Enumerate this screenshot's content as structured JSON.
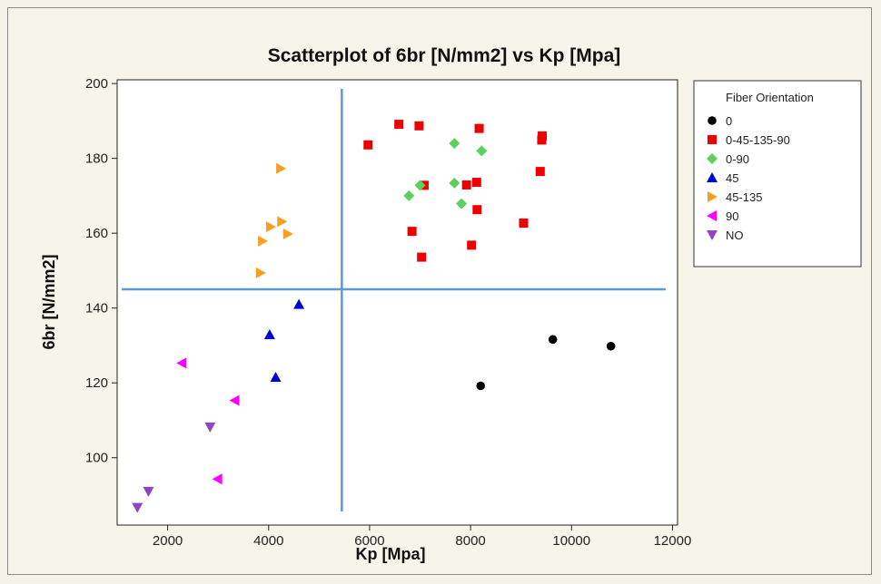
{
  "chart_data": {
    "type": "scatter",
    "title": "Scatterplot of 6br [N/mm2] vs Kp [Mpa]",
    "xlabel": "Kp [Mpa]",
    "ylabel": "6br [N/mm2]",
    "xlim": [
      1000,
      12100
    ],
    "ylim": [
      82,
      201
    ],
    "xticks": [
      2000,
      4000,
      6000,
      8000,
      10000,
      12000
    ],
    "yticks": [
      100,
      120,
      140,
      160,
      180,
      200
    ],
    "grid": false,
    "legend_placement": "right",
    "legend_title": "Fiber Orientation",
    "reference_lines": {
      "x": 5450,
      "y": 145
    },
    "reference_line_color": "#5b9bd5",
    "series": [
      {
        "name": "0",
        "marker": "circle",
        "color": "#000000",
        "points": [
          [
            8200,
            119.2
          ],
          [
            9630,
            131.6
          ],
          [
            10780,
            129.8
          ]
        ]
      },
      {
        "name": "0-45-135-90",
        "marker": "square",
        "color": "#ee0000",
        "points": [
          [
            5970,
            183.6
          ],
          [
            6580,
            189.1
          ],
          [
            6980,
            188.7
          ],
          [
            7080,
            172.8
          ],
          [
            6840,
            160.5
          ],
          [
            7030,
            153.6
          ],
          [
            7920,
            172.9
          ],
          [
            8120,
            173.6
          ],
          [
            8170,
            188.0
          ],
          [
            8130,
            166.3
          ],
          [
            8020,
            156.8
          ],
          [
            9050,
            162.7
          ],
          [
            9380,
            176.5
          ],
          [
            9410,
            184.9
          ],
          [
            9420,
            186.0
          ]
        ]
      },
      {
        "name": "0-90",
        "marker": "diamond",
        "color": "#5ccf5c",
        "points": [
          [
            6780,
            170.0
          ],
          [
            7000,
            172.8
          ],
          [
            7680,
            173.4
          ],
          [
            7680,
            184.0
          ],
          [
            7820,
            167.9
          ],
          [
            8220,
            182.0
          ]
        ]
      },
      {
        "name": "45",
        "marker": "triangle-up",
        "color": "#0000dd",
        "points": [
          [
            4020,
            132.9
          ],
          [
            4140,
            121.5
          ],
          [
            4600,
            141.0
          ]
        ]
      },
      {
        "name": "45-135",
        "marker": "triangle-right",
        "color": "#f5a020",
        "points": [
          [
            3840,
            149.4
          ],
          [
            3880,
            157.9
          ],
          [
            4040,
            161.7
          ],
          [
            4240,
            177.3
          ],
          [
            4260,
            163.1
          ],
          [
            4380,
            159.8
          ]
        ]
      },
      {
        "name": "90",
        "marker": "triangle-left",
        "color": "#ff00ff",
        "points": [
          [
            2280,
            125.3
          ],
          [
            2990,
            94.3
          ],
          [
            3330,
            115.3
          ]
        ]
      },
      {
        "name": "NO",
        "marker": "triangle-down",
        "color": "#8e44c4",
        "points": [
          [
            1400,
            86.7
          ],
          [
            1620,
            91.0
          ],
          [
            2840,
            108.2
          ]
        ]
      }
    ]
  }
}
